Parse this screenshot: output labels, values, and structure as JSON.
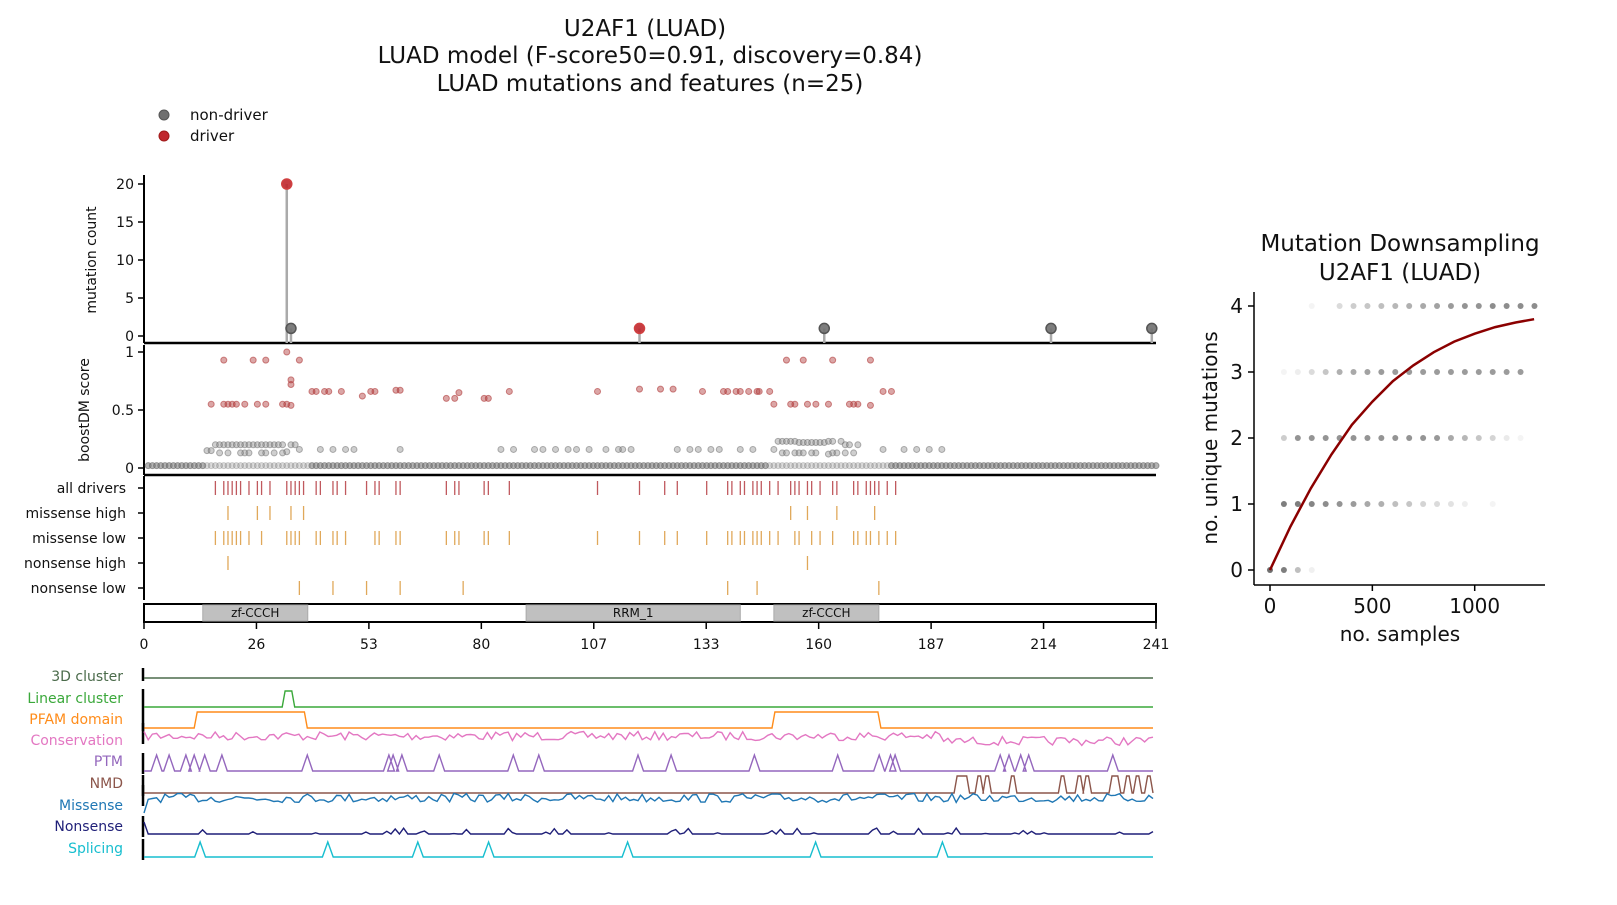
{
  "title": {
    "line1": "U2AF1 (LUAD)",
    "line2": "LUAD model (F-score50=0.91, discovery=0.84)",
    "line3": "LUAD mutations and features (n=25)"
  },
  "legend": [
    {
      "label": "non-driver",
      "color": "#707070"
    },
    {
      "label": "driver",
      "color": "#c0272d"
    }
  ],
  "chart_data": [
    {
      "type": "scatter",
      "name": "lollipop",
      "ylabel": "mutation count",
      "ylim": [
        0,
        21
      ],
      "yticks": [
        0,
        5,
        10,
        15,
        20
      ],
      "xlim": [
        0,
        241
      ],
      "points": [
        {
          "pos": 34,
          "count": 20,
          "driver": true
        },
        {
          "pos": 35,
          "count": 1,
          "driver": false
        },
        {
          "pos": 118,
          "count": 1,
          "driver": true
        },
        {
          "pos": 162,
          "count": 1,
          "driver": false
        },
        {
          "pos": 216,
          "count": 1,
          "driver": false
        },
        {
          "pos": 240,
          "count": 1,
          "driver": false
        }
      ]
    },
    {
      "type": "scatter",
      "name": "boostDM",
      "ylabel": "boostDM score",
      "ylim": [
        0,
        1
      ],
      "yticks": [
        "0",
        "0.5",
        "1"
      ],
      "driver_points": [
        [
          19,
          0.93
        ],
        [
          26,
          0.93
        ],
        [
          29,
          0.93
        ],
        [
          34,
          1.0
        ],
        [
          37,
          0.93
        ],
        [
          35,
          0.76
        ],
        [
          35,
          0.72
        ],
        [
          16,
          0.55
        ],
        [
          19,
          0.55
        ],
        [
          20,
          0.55
        ],
        [
          21,
          0.55
        ],
        [
          22,
          0.55
        ],
        [
          24,
          0.55
        ],
        [
          27,
          0.55
        ],
        [
          29,
          0.55
        ],
        [
          33,
          0.55
        ],
        [
          34,
          0.55
        ],
        [
          35,
          0.54
        ],
        [
          40,
          0.66
        ],
        [
          41,
          0.66
        ],
        [
          43,
          0.66
        ],
        [
          44,
          0.66
        ],
        [
          47,
          0.66
        ],
        [
          52,
          0.62
        ],
        [
          54,
          0.66
        ],
        [
          55,
          0.66
        ],
        [
          60,
          0.67
        ],
        [
          61,
          0.67
        ],
        [
          72,
          0.6
        ],
        [
          74,
          0.6
        ],
        [
          75,
          0.65
        ],
        [
          81,
          0.6
        ],
        [
          82,
          0.6
        ],
        [
          87,
          0.66
        ],
        [
          108,
          0.66
        ],
        [
          118,
          0.68
        ],
        [
          123,
          0.68
        ],
        [
          126,
          0.68
        ],
        [
          133,
          0.66
        ],
        [
          138,
          0.66
        ],
        [
          139,
          0.66
        ],
        [
          141,
          0.66
        ],
        [
          142,
          0.66
        ],
        [
          144,
          0.66
        ],
        [
          146,
          0.66
        ],
        [
          146.5,
          0.66
        ],
        [
          149,
          0.66
        ],
        [
          150,
          0.55
        ],
        [
          154,
          0.55
        ],
        [
          155,
          0.55
        ],
        [
          158,
          0.55
        ],
        [
          160,
          0.55
        ],
        [
          163,
          0.55
        ],
        [
          168,
          0.55
        ],
        [
          169,
          0.55
        ],
        [
          170,
          0.55
        ],
        [
          173,
          0.54
        ],
        [
          153,
          0.93
        ],
        [
          157,
          0.93
        ],
        [
          164,
          0.93
        ],
        [
          173,
          0.93
        ],
        [
          176,
          0.66
        ],
        [
          178,
          0.66
        ]
      ],
      "nondriver_points": [
        [
          15,
          0.15
        ],
        [
          16,
          0.15
        ],
        [
          17,
          0.2
        ],
        [
          18,
          0.2
        ],
        [
          19,
          0.2
        ],
        [
          20,
          0.2
        ],
        [
          21,
          0.2
        ],
        [
          22,
          0.2
        ],
        [
          23,
          0.2
        ],
        [
          24,
          0.2
        ],
        [
          25,
          0.2
        ],
        [
          26,
          0.2
        ],
        [
          27,
          0.2
        ],
        [
          28,
          0.2
        ],
        [
          29,
          0.2
        ],
        [
          30,
          0.2
        ],
        [
          31,
          0.2
        ],
        [
          32,
          0.2
        ],
        [
          33,
          0.2
        ],
        [
          35,
          0.2
        ],
        [
          36,
          0.2
        ],
        [
          18,
          0.13
        ],
        [
          20,
          0.13
        ],
        [
          23,
          0.13
        ],
        [
          24,
          0.13
        ],
        [
          25,
          0.13
        ],
        [
          28,
          0.13
        ],
        [
          29,
          0.13
        ],
        [
          31,
          0.13
        ],
        [
          33,
          0.13
        ],
        [
          34,
          0.14
        ],
        [
          37,
          0.16
        ],
        [
          42,
          0.16
        ],
        [
          45,
          0.16
        ],
        [
          48,
          0.16
        ],
        [
          50,
          0.16
        ],
        [
          61,
          0.16
        ],
        [
          85,
          0.16
        ],
        [
          88,
          0.16
        ],
        [
          93,
          0.16
        ],
        [
          95,
          0.16
        ],
        [
          98,
          0.16
        ],
        [
          101,
          0.16
        ],
        [
          103,
          0.16
        ],
        [
          106,
          0.16
        ],
        [
          110,
          0.16
        ],
        [
          113,
          0.16
        ],
        [
          114,
          0.16
        ],
        [
          116,
          0.16
        ],
        [
          127,
          0.16
        ],
        [
          130,
          0.16
        ],
        [
          132,
          0.16
        ],
        [
          135,
          0.16
        ],
        [
          137,
          0.16
        ],
        [
          142,
          0.16
        ],
        [
          145,
          0.16
        ],
        [
          151,
          0.23
        ],
        [
          152,
          0.23
        ],
        [
          153,
          0.23
        ],
        [
          154,
          0.23
        ],
        [
          155,
          0.23
        ],
        [
          156,
          0.22
        ],
        [
          157,
          0.22
        ],
        [
          158,
          0.22
        ],
        [
          159,
          0.22
        ],
        [
          160,
          0.22
        ],
        [
          161,
          0.22
        ],
        [
          162,
          0.22
        ],
        [
          163,
          0.23
        ],
        [
          164,
          0.23
        ],
        [
          166,
          0.23
        ],
        [
          167,
          0.2
        ],
        [
          168,
          0.2
        ],
        [
          170,
          0.2
        ],
        [
          150,
          0.16
        ],
        [
          152,
          0.13
        ],
        [
          153,
          0.13
        ],
        [
          155,
          0.13
        ],
        [
          156,
          0.13
        ],
        [
          157,
          0.13
        ],
        [
          159,
          0.13
        ],
        [
          160,
          0.13
        ],
        [
          163,
          0.12
        ],
        [
          164,
          0.13
        ],
        [
          165,
          0.13
        ],
        [
          167,
          0.13
        ],
        [
          169,
          0.13
        ],
        [
          176,
          0.16
        ],
        [
          181,
          0.16
        ],
        [
          184,
          0.16
        ],
        [
          187,
          0.16
        ],
        [
          190,
          0.16
        ]
      ],
      "nondriver_baseline": {
        "from": 1,
        "to": 241,
        "score": 0.02
      }
    },
    {
      "type": "table",
      "name": "mutation-tracks",
      "rows": [
        {
          "label": "all drivers",
          "color": "#c0595e",
          "positions": [
            17,
            19,
            20,
            21,
            22,
            23,
            25,
            27,
            28,
            30,
            34,
            35,
            36,
            37,
            38,
            41,
            42,
            45,
            46,
            48,
            53,
            55,
            56,
            60,
            61,
            72,
            74,
            75,
            81,
            82,
            87,
            108,
            118,
            124,
            127,
            134,
            139,
            140,
            142,
            143,
            145,
            146,
            147,
            149,
            151,
            154,
            155,
            156,
            158,
            159,
            161,
            164,
            165,
            169,
            170,
            172,
            173,
            174,
            175,
            177,
            179
          ]
        },
        {
          "label": "missense high",
          "color": "#e0a85a",
          "positions": [
            20,
            27,
            30,
            35,
            38,
            154,
            158,
            165,
            174
          ]
        },
        {
          "label": "missense low",
          "color": "#e0a85a",
          "positions": [
            17,
            19,
            20,
            21,
            22,
            23,
            25,
            28,
            34,
            35,
            36,
            37,
            41,
            42,
            45,
            46,
            48,
            55,
            56,
            60,
            61,
            72,
            74,
            75,
            81,
            82,
            87,
            108,
            118,
            124,
            127,
            134,
            139,
            140,
            142,
            143,
            145,
            146,
            147,
            149,
            151,
            155,
            156,
            159,
            161,
            164,
            169,
            170,
            172,
            173,
            175,
            177,
            179
          ]
        },
        {
          "label": "nonsense high",
          "color": "#e0a85a",
          "positions": [
            20,
            158
          ]
        },
        {
          "label": "nonsense low",
          "color": "#e0a85a",
          "positions": [
            37,
            45,
            53,
            61,
            76,
            139,
            146,
            175
          ]
        }
      ]
    },
    {
      "type": "bar",
      "name": "domains",
      "domains": [
        {
          "label": "zf-CCCH",
          "start": 14,
          "end": 39
        },
        {
          "label": "RRM_1",
          "start": 91,
          "end": 142
        },
        {
          "label": "zf-CCCH",
          "start": 150,
          "end": 175
        }
      ],
      "xticks": [
        "0",
        "26",
        "53",
        "80",
        "107",
        "133",
        "160",
        "187",
        "214",
        "241"
      ],
      "xlim": [
        0,
        241
      ]
    },
    {
      "type": "line",
      "name": "feature-tracks",
      "tracks": [
        {
          "label": "3D cluster",
          "color": "#4b6b4b",
          "kind": "flat"
        },
        {
          "label": "Linear cluster",
          "color": "#3aa83a",
          "kind": "plateaus",
          "plateaus": [
            [
              34,
              35
            ]
          ]
        },
        {
          "label": "PFAM domain",
          "color": "#ff8c1a",
          "kind": "plateaus",
          "plateaus": [
            [
              13,
              38
            ],
            [
              151,
              175
            ]
          ]
        },
        {
          "label": "Conservation",
          "color": "#e377c2",
          "kind": "noise"
        },
        {
          "label": "PTM",
          "color": "#9467bd",
          "kind": "peaks",
          "peaks": [
            3,
            6,
            10,
            12,
            14.5,
            18.6,
            39,
            58.5,
            59.5,
            61.6,
            70.5,
            88.2,
            94.3,
            118,
            125.9,
            145.8,
            165.7,
            175.6,
            178.3,
            179.4,
            204.5,
            206.6,
            209.4,
            211.3,
            231.4
          ]
        },
        {
          "label": "NMD",
          "color": "#8c564b",
          "kind": "plateaus",
          "plateaus": [
            [
              194.5,
              196.2
            ],
            [
              199.5,
              199.5
            ],
            [
              201.4,
              201.4
            ],
            [
              207.5,
              207.5
            ],
            [
              219.4,
              219.4
            ],
            [
              223.4,
              223.4
            ],
            [
              225.3,
              225.3
            ],
            [
              231.5,
              232.3
            ],
            [
              235,
              235
            ],
            [
              237.3,
              237.3
            ],
            [
              240,
              240
            ]
          ]
        },
        {
          "label": "Missense",
          "color": "#1f77b4",
          "kind": "noise"
        },
        {
          "label": "Nonsense",
          "color": "#1f1f78",
          "kind": "noise"
        },
        {
          "label": "Splicing",
          "color": "#17becf",
          "kind": "peaks",
          "peaks": [
            13.4,
            43.9,
            65.4,
            82.3,
            115.5,
            160.4,
            190.7
          ]
        }
      ]
    },
    {
      "type": "scatter",
      "name": "downsampling",
      "title_line1": "Mutation Downsampling",
      "title_line2": "U2AF1 (LUAD)",
      "xlabel": "no. samples",
      "ylabel": "no. unique mutations",
      "xticks": [
        0,
        500,
        1000
      ],
      "yticks": [
        0,
        1,
        2,
        3,
        4
      ],
      "xlim": [
        -70,
        1330
      ],
      "ylim": [
        -0.25,
        4.25
      ],
      "sample_step": 68,
      "point_color": "#707070",
      "rows": [
        {
          "y": 0,
          "alpha": [
            1,
            0.9,
            0.45,
            0.1
          ]
        },
        {
          "y": 1,
          "alpha": [
            0,
            0.9,
            0.9,
            0.85,
            0.8,
            0.75,
            0.7,
            0.6,
            0.55,
            0.45,
            0.4,
            0.3,
            0.25,
            0.2,
            0.12,
            0,
            0.08
          ]
        },
        {
          "y": 2,
          "alpha": [
            0,
            0.35,
            0.75,
            0.75,
            0.75,
            0.75,
            0.75,
            0.75,
            0.75,
            0.75,
            0.75,
            0.75,
            0.72,
            0.6,
            0.5,
            0.4,
            0.3,
            0.15,
            0.08
          ]
        },
        {
          "y": 3,
          "alpha": [
            0,
            0.08,
            0.12,
            0.25,
            0.4,
            0.55,
            0.6,
            0.65,
            0.7,
            0.7,
            0.7,
            0.7,
            0.7,
            0.7,
            0.7,
            0.7,
            0.7,
            0.7,
            0.7
          ]
        },
        {
          "y": 4,
          "alpha": [
            0,
            0,
            0,
            0.08,
            0,
            0.25,
            0.35,
            0.4,
            0.45,
            0.5,
            0.55,
            0.6,
            0.65,
            0.7,
            0.75,
            0.75,
            0.8,
            0.8,
            0.8,
            0.8
          ]
        }
      ],
      "curve_color": "#8b0000",
      "curve": [
        [
          0,
          0
        ],
        [
          100,
          0.66
        ],
        [
          200,
          1.24
        ],
        [
          300,
          1.75
        ],
        [
          400,
          2.2
        ],
        [
          500,
          2.55
        ],
        [
          600,
          2.86
        ],
        [
          700,
          3.1
        ],
        [
          800,
          3.3
        ],
        [
          900,
          3.46
        ],
        [
          1000,
          3.58
        ],
        [
          1100,
          3.68
        ],
        [
          1200,
          3.75
        ],
        [
          1290,
          3.8
        ]
      ]
    }
  ]
}
